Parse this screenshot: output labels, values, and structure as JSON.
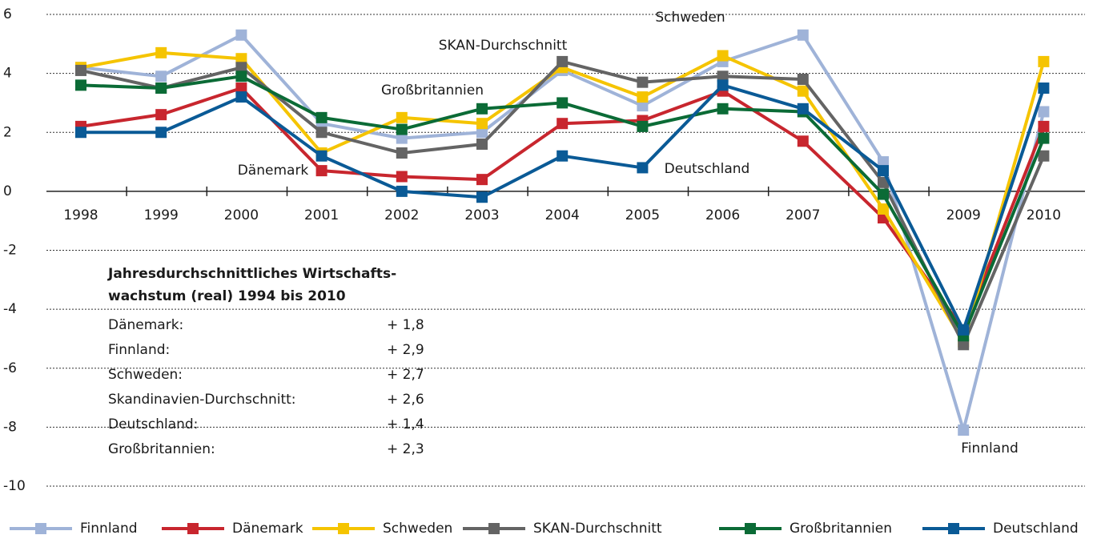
{
  "chart_data": {
    "type": "line",
    "categories": [
      "1998",
      "1999",
      "2000",
      "2001",
      "2002",
      "2003",
      "2004",
      "2005",
      "2006",
      "2007",
      null,
      "2009",
      "2010"
    ],
    "series": [
      {
        "name": "Finnland",
        "color": "#9fb3d8",
        "values": [
          4.2,
          3.9,
          5.3,
          2.3,
          1.8,
          2.0,
          4.1,
          2.9,
          4.4,
          5.3,
          1.0,
          -8.1,
          2.7
        ]
      },
      {
        "name": "Dänemark",
        "color": "#c8262e",
        "values": [
          2.2,
          2.6,
          3.5,
          0.7,
          0.5,
          0.4,
          2.3,
          2.4,
          3.4,
          1.7,
          -0.9,
          -4.7,
          2.2
        ]
      },
      {
        "name": "Schweden",
        "color": "#f5c400",
        "values": [
          4.2,
          4.7,
          4.5,
          1.3,
          2.5,
          2.3,
          4.2,
          3.2,
          4.6,
          3.4,
          -0.6,
          -5.1,
          4.4
        ]
      },
      {
        "name": "SKAN-Durchschnitt",
        "color": "#646464",
        "values": [
          4.1,
          3.5,
          4.2,
          2.0,
          1.3,
          1.6,
          4.4,
          3.7,
          3.9,
          3.8,
          0.3,
          -5.2,
          1.2
        ]
      },
      {
        "name": "Großbritannien",
        "color": "#0b6b36",
        "values": [
          3.6,
          3.5,
          3.9,
          2.5,
          2.1,
          2.8,
          3.0,
          2.2,
          2.8,
          2.7,
          -0.1,
          -4.9,
          1.8
        ]
      },
      {
        "name": "Deutschland",
        "color": "#0a5a96",
        "values": [
          2.0,
          2.0,
          3.2,
          1.2,
          0.0,
          -0.2,
          1.2,
          0.8,
          3.6,
          2.8,
          0.7,
          -4.7,
          3.5
        ]
      }
    ],
    "ylim": [
      -10,
      6
    ],
    "yticks": [
      -10,
      -8,
      -6,
      -4,
      -2,
      0,
      2,
      4,
      6
    ],
    "grid": true,
    "annotations": [
      "SKAN-Durchschnitt",
      "Schweden",
      "Großbritannien",
      "Dänemark",
      "Deutschland",
      "Finnland"
    ],
    "info_box": {
      "title": [
        "Jahresdurchschnittliches Wirtschafts-",
        "wachstum (real) 1994 bis 2010"
      ],
      "rows": [
        {
          "label": "Dänemark:",
          "value": "+ 1,8"
        },
        {
          "label": "Finnland:",
          "value": "+ 2,9"
        },
        {
          "label": "Schweden:",
          "value": "+ 2,7"
        },
        {
          "label": "Skandinavien-Durchschnitt:",
          "value": "+ 2,6"
        },
        {
          "label": "Deutschland:",
          "value": "+ 1,4"
        },
        {
          "label": "Großbritannien:",
          "value": "+ 2,3"
        }
      ]
    },
    "legend": "bottom"
  }
}
